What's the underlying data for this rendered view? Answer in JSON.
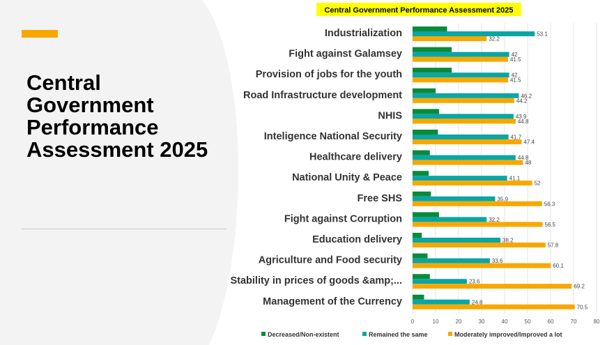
{
  "slide": {
    "title": "Central\nGovernment\nPerformance\nAssessment 2025",
    "accent_color": "#f7a800"
  },
  "chart_data": {
    "type": "bar",
    "orientation": "horizontal",
    "title": "Central Government Performance Assessment 2025",
    "title_highlight_color": "#ffff00",
    "categories": [
      "Industrialization",
      "Fight against Galamsey",
      "Provision of jobs for the youth",
      "Road Infrastructure development",
      "NHIS",
      "Inteligence National Security",
      "Healthcare delivery",
      "National Unity & Peace",
      "Free SHS",
      "Fight against Corruption",
      "Education delivery",
      "Agriculture and Food security",
      "Stability in prices of goods &amp;...",
      "Management of the Currency"
    ],
    "series": [
      {
        "name": "Decreased/Non-existent",
        "color": "#0a8a3a",
        "labeled": false,
        "values": [
          15,
          17,
          17,
          10,
          11.5,
          11,
          7.5,
          7,
          8,
          11.5,
          4,
          6.5,
          7.5,
          5
        ]
      },
      {
        "name": "Remained the same",
        "color": "#0aa5a5",
        "labeled": true,
        "value_labels": [
          "53.1",
          "42",
          "42",
          "46.2",
          "43.9",
          "41.7",
          "44.8",
          "41.1",
          "35.9",
          "32.2",
          "38.2",
          "33.6",
          "23.6",
          "24.8"
        ],
        "values": [
          53.1,
          42,
          42,
          46.2,
          43.9,
          41.7,
          44.8,
          41.1,
          35.9,
          32.2,
          38.2,
          33.6,
          23.6,
          24.8
        ]
      },
      {
        "name": "Moderately improved/Improved a lot",
        "color": "#f7a800",
        "labeled": true,
        "value_labels": [
          "32.2",
          "41.5",
          "41.5",
          "44.2",
          "44.8",
          "47.4",
          "48",
          "52",
          "56.3",
          "56.5",
          "57.8",
          "60.1",
          "69.2",
          "70.5"
        ],
        "values": [
          32.2,
          41.5,
          41.5,
          44.2,
          44.8,
          47.4,
          48,
          52,
          56.3,
          56.5,
          57.8,
          60.1,
          69.2,
          70.5
        ]
      }
    ],
    "xlim": [
      0,
      80
    ],
    "x_ticks": [
      0,
      10,
      20,
      30,
      40,
      50,
      60,
      70,
      80
    ],
    "x_tick_labels": [
      "0",
      "10",
      "20",
      "30",
      "40",
      "50",
      "60",
      "70",
      "80"
    ],
    "grid": true,
    "legend_position": "bottom"
  }
}
